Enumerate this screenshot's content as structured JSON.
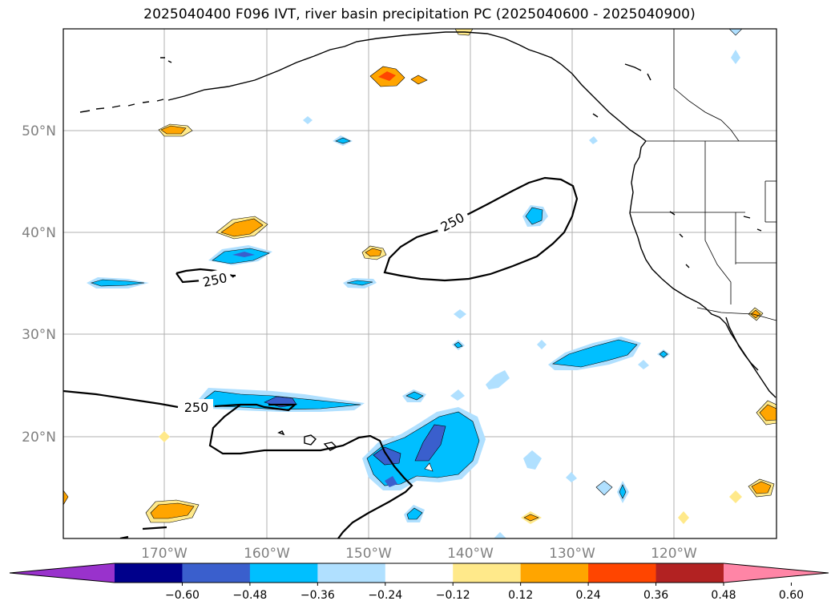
{
  "title": "2025040400 F096 IVT, river basin precipitation PC (2025040600 - 2025040900)",
  "map": {
    "lat_labels": [
      "50°N",
      "40°N",
      "30°N",
      "20°N"
    ],
    "lon_labels": [
      "170°W",
      "160°W",
      "150°W",
      "140°W",
      "130°W",
      "120°W"
    ],
    "contour_level": "250",
    "colors": {
      "gridline": "#b0b0b0",
      "coast": "#000000",
      "light_yellow": "#ffe98a",
      "orange": "#ffa500",
      "red_orange": "#ff4500",
      "light_blue": "#b0e0ff",
      "cyan_blue": "#00bfff",
      "royal_blue": "#3a5fcd",
      "navy": "#00008b",
      "dark_red": "#b22222",
      "pink": "#ff85a6",
      "purple": "#9932cc"
    }
  },
  "colorbar": {
    "labels": [
      "−0.60",
      "−0.48",
      "−0.36",
      "−0.24",
      "−0.12",
      "0.12",
      "0.24",
      "0.36",
      "0.48",
      "0.60"
    ],
    "segments": [
      "#9932cc",
      "#00008b",
      "#3a5fcd",
      "#00bfff",
      "#b0e0ff",
      "#ffffff",
      "#ffe98a",
      "#ffa500",
      "#ff4500",
      "#b22222",
      "#ff85a6"
    ]
  }
}
